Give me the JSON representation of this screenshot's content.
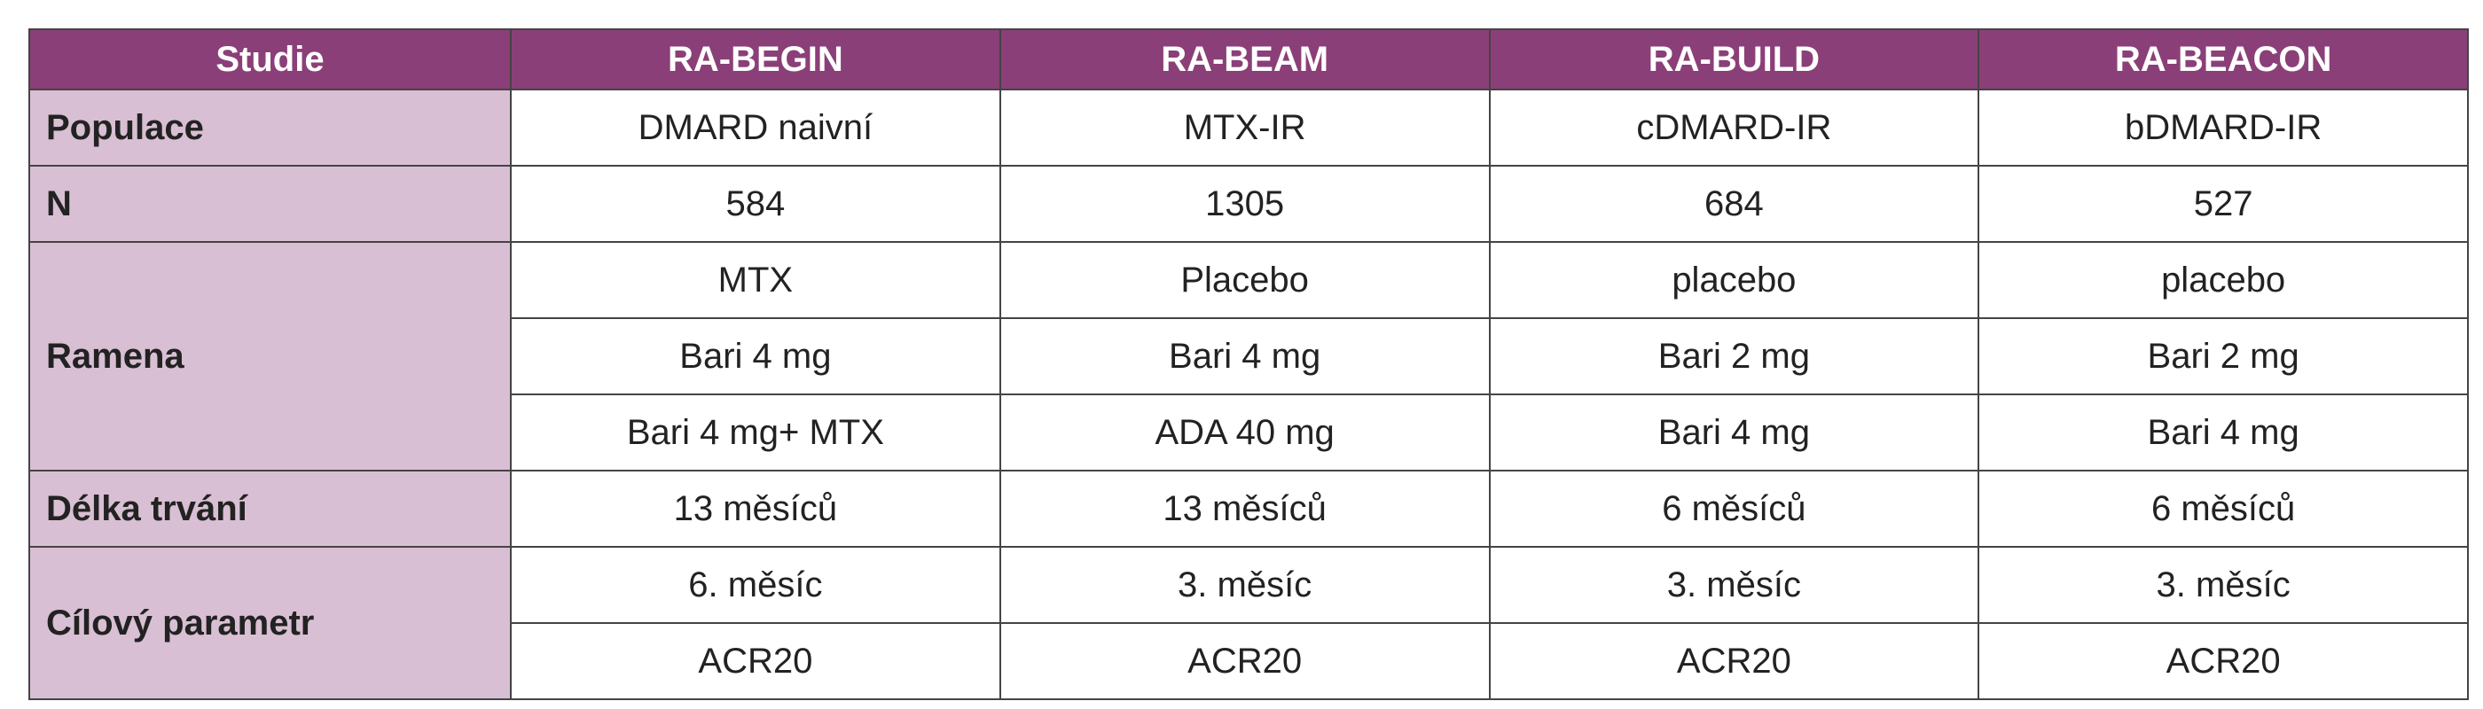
{
  "table": {
    "header": [
      "Studie",
      "RA-BEGIN",
      "RA-BEAM",
      "RA-BUILD",
      "RA-BEACON"
    ],
    "rows": [
      {
        "label": "Populace",
        "lines": [
          [
            "DMARD naivní",
            "MTX-IR",
            "cDMARD-IR",
            "bDMARD-IR"
          ]
        ]
      },
      {
        "label": "N",
        "lines": [
          [
            "584",
            "1305",
            "684",
            "527"
          ]
        ]
      },
      {
        "label": "Ramena",
        "lines": [
          [
            "MTX",
            "Placebo",
            "placebo",
            "placebo"
          ],
          [
            "Bari 4 mg",
            "Bari 4 mg",
            "Bari 2 mg",
            "Bari 2 mg"
          ],
          [
            "Bari 4 mg+ MTX",
            "ADA 40 mg",
            "Bari 4 mg",
            "Bari 4 mg"
          ]
        ]
      },
      {
        "label": "Délka trvání",
        "lines": [
          [
            "13 měsíců",
            "13 měsíců",
            "6 měsíců",
            "6 měsíců"
          ]
        ]
      },
      {
        "label": "Cílový parametr",
        "lines": [
          [
            "6. měsíc",
            "3. měsíc",
            "3. měsíc",
            "3. měsíc"
          ],
          [
            "ACR20",
            "ACR20",
            "ACR20",
            "ACR20"
          ]
        ]
      }
    ]
  }
}
